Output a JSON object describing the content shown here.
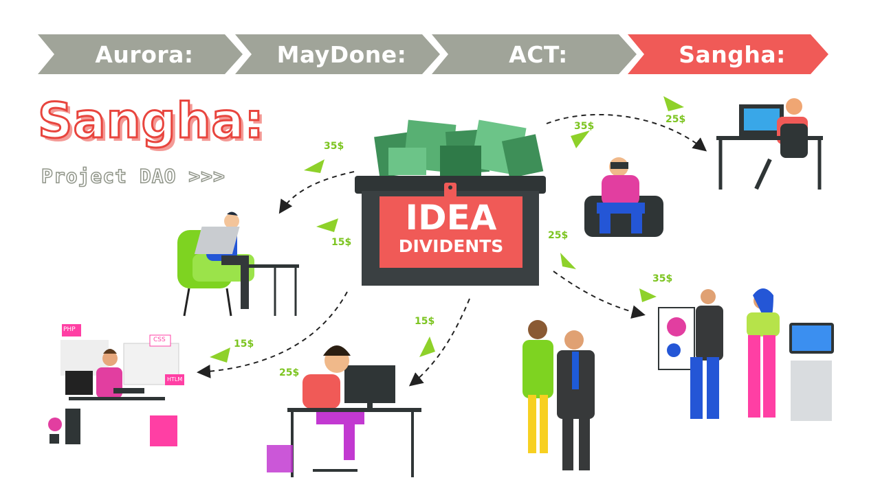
{
  "steps": [
    {
      "label": "Aurora:",
      "active": false
    },
    {
      "label": "MayDone:",
      "active": false
    },
    {
      "label": "ACT:",
      "active": false
    },
    {
      "label": "Sangha:",
      "active": true
    }
  ],
  "title": "Sangha:",
  "subtitle": "Project DAO >>>",
  "chest": {
    "line1": "IDEA",
    "line2": "DIVIDENTS"
  },
  "dividends": [
    {
      "id": "top-left",
      "amount": "35$"
    },
    {
      "id": "mid-left",
      "amount": "15$"
    },
    {
      "id": "bottom-left",
      "amount": "15$"
    },
    {
      "id": "bottom-left-2",
      "amount": "25$"
    },
    {
      "id": "bottom-mid",
      "amount": "15$"
    },
    {
      "id": "top-right",
      "amount": "35$"
    },
    {
      "id": "far-top-right",
      "amount": "25$"
    },
    {
      "id": "right",
      "amount": "25$"
    },
    {
      "id": "right-low",
      "amount": "35$"
    }
  ],
  "screen_tags": {
    "php": "PHP",
    "css": "CSS",
    "html": "HTLM"
  },
  "colors": {
    "accent": "#f05a57",
    "muted": "#a0a499",
    "money": "#7cc420",
    "dark": "#37393a"
  }
}
